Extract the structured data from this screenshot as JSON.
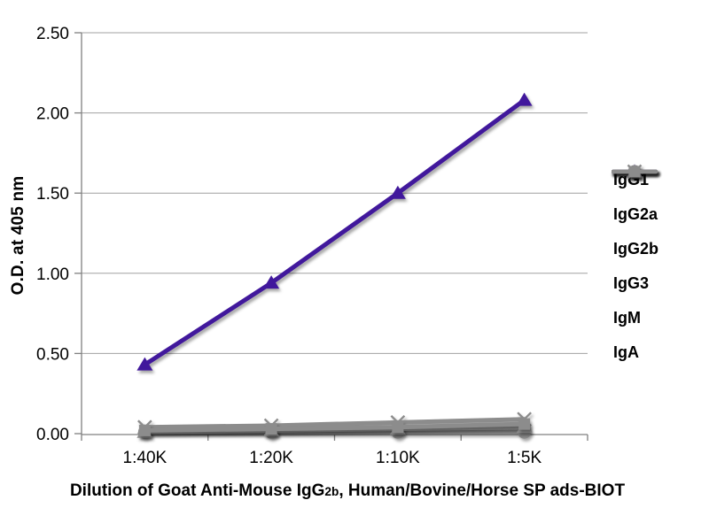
{
  "chart_data": {
    "type": "line",
    "title": "",
    "ylabel": "O.D. at 405 nm",
    "xlabel": "Dilution of Goat Anti-Mouse IgG2b, Human/Bovine/Horse SP ads-BIOT",
    "xlabel_parts": {
      "prefix": "Dilution of Goat Anti-Mouse IgG",
      "sub": "2b",
      "suffix": ", Human/Bovine/Horse SP ads-BIOT"
    },
    "categories": [
      "1:40K",
      "1:20K",
      "1:10K",
      "1:5K"
    ],
    "ylim": [
      0,
      2.5
    ],
    "ytick_interval": 0.5,
    "ytick_labels": [
      "0.00",
      "0.50",
      "1.00",
      "1.50",
      "2.00",
      "2.50"
    ],
    "grid": true,
    "legend_position": "right",
    "colors": {
      "accent_purple": "#41189C",
      "series_gray": "#8C8C8C",
      "grid_line": "#A0A0A0",
      "axis_line": "#808080",
      "text": "#000000"
    },
    "series": [
      {
        "name": "IgG1",
        "marker": "diamond",
        "color": "#8C8C8C",
        "values": [
          0.02,
          0.02,
          0.03,
          0.04
        ]
      },
      {
        "name": "IgG2a",
        "marker": "circle",
        "color": "#8C8C8C",
        "values": [
          0.01,
          0.01,
          0.01,
          0.01
        ]
      },
      {
        "name": "IgG2b",
        "marker": "triangle",
        "color": "#41189C",
        "values": [
          0.43,
          0.94,
          1.5,
          2.08
        ]
      },
      {
        "name": "IgG3",
        "marker": "x",
        "color": "#8C8C8C",
        "values": [
          0.04,
          0.05,
          0.07,
          0.09
        ]
      },
      {
        "name": "IgM",
        "marker": "triangle",
        "color": "#8C8C8C",
        "values": [
          0.01,
          0.02,
          0.03,
          0.04
        ]
      },
      {
        "name": "IgA",
        "marker": "square",
        "color": "#8C8C8C",
        "values": [
          0.02,
          0.03,
          0.04,
          0.06
        ]
      }
    ]
  }
}
